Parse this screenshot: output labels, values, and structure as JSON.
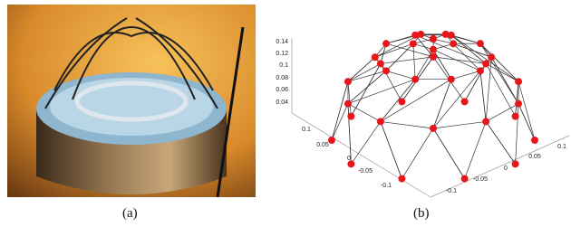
{
  "figure": {
    "panels": [
      {
        "label": "(a)"
      },
      {
        "label": "(b)",
        "z_ticks": [
          "0.14",
          "0.12",
          "0.1",
          "0.08",
          "0.06",
          "0.04"
        ],
        "x_ticks": [
          "0.1",
          "0.05",
          "0",
          "-0.05",
          "-0.1"
        ],
        "y_ticks": [
          "-0.1",
          "-0.05",
          "0",
          "0.05",
          "0.1"
        ]
      }
    ]
  }
}
